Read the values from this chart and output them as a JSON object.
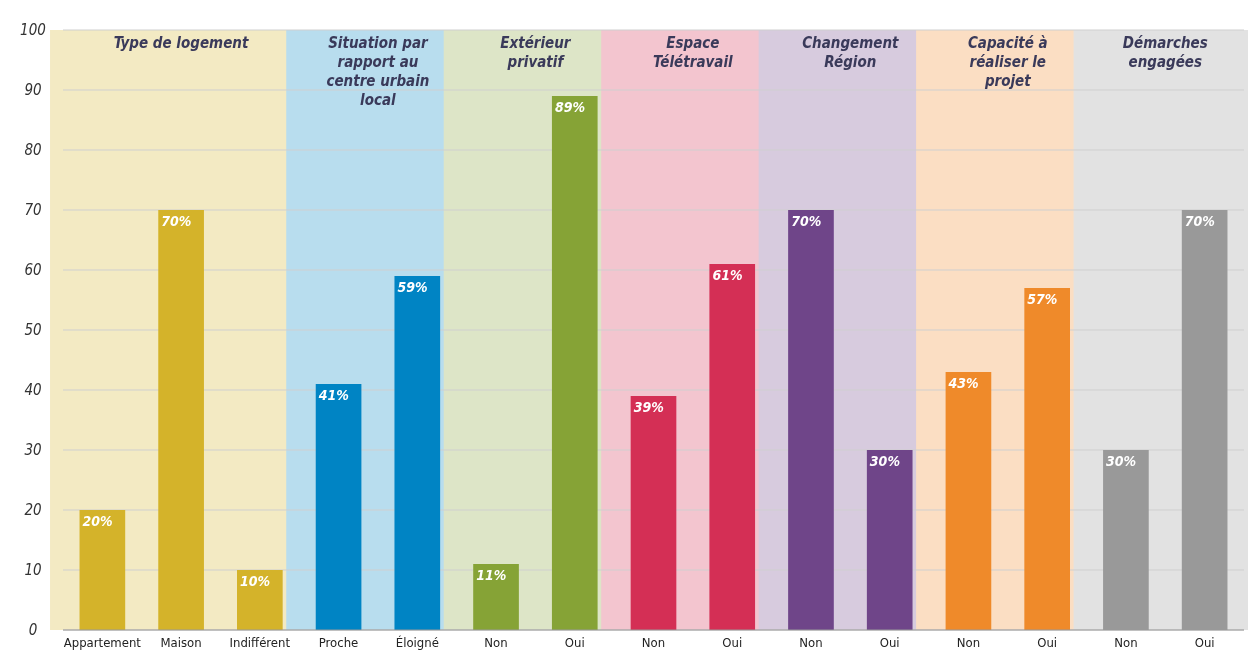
{
  "chart_data": {
    "type": "bar",
    "categories": [
      "Appartement",
      "Maison",
      "Indifférent",
      "Proche",
      "Éloigné",
      "Non",
      "Oui",
      "Non",
      "Oui",
      "Non",
      "Oui",
      "Non",
      "Oui",
      "Non",
      "Oui"
    ],
    "values": [
      20,
      70,
      10,
      41,
      59,
      11,
      89,
      39,
      61,
      70,
      30,
      43,
      57,
      30,
      70
    ],
    "colors": [
      "#d4b32a",
      "#d4b32a",
      "#d4b32a",
      "#0084c4",
      "#0084c4",
      "#86a336",
      "#86a336",
      "#d42f55",
      "#d42f55",
      "#6f4589",
      "#6f4589",
      "#ef8a2a",
      "#ef8a2a",
      "#999999",
      "#999999"
    ],
    "value_labels": [
      "20%",
      "70%",
      "10%",
      "41%",
      "59%",
      "11%",
      "89%",
      "39%",
      "61%",
      "70%",
      "30%",
      "43%",
      "57%",
      "30%",
      "70%"
    ],
    "ylim": [
      0,
      100
    ],
    "yticks": [
      0,
      10,
      20,
      30,
      40,
      50,
      60,
      70,
      80,
      90,
      100
    ],
    "grid": "y",
    "annotations": [
      "Type de logement",
      "Situation par rapport au centre urbain local",
      "Extérieur privatif",
      "Espace Télétravail",
      "Changement Région",
      "Capacité à réaliser le projet",
      "Démarches engagées"
    ]
  }
}
